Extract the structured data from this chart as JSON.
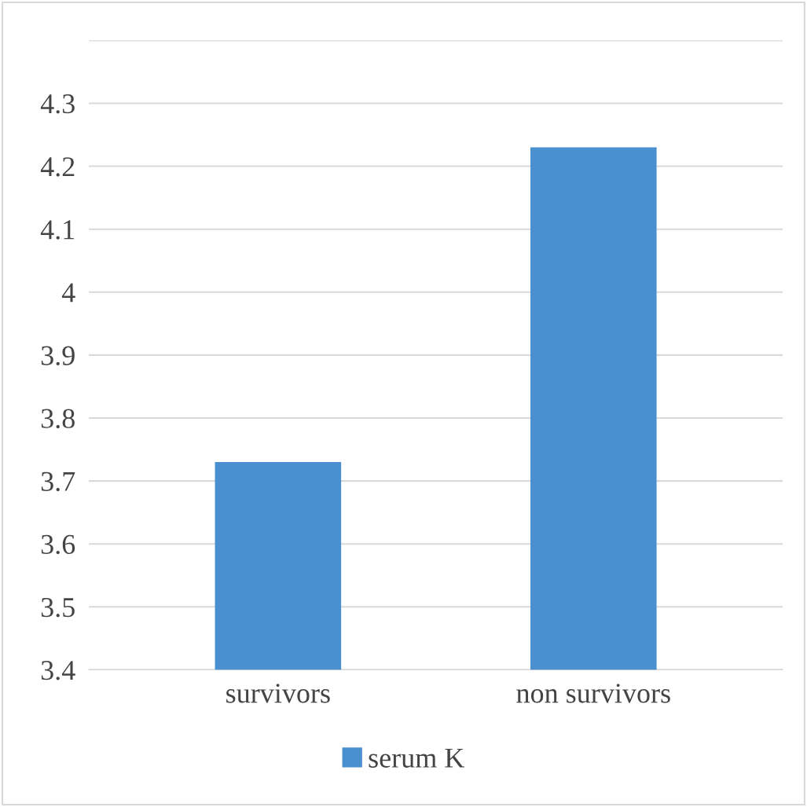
{
  "chart_data": {
    "type": "bar",
    "categories": [
      "survivors",
      "non survivors"
    ],
    "series": [
      {
        "name": "serum K",
        "color": "#4a8fd0",
        "values": [
          3.73,
          4.23
        ]
      }
    ],
    "ylim": [
      3.4,
      4.4
    ],
    "yticks": [
      3.4,
      3.5,
      3.6,
      3.7,
      3.8,
      3.9,
      4,
      4.1,
      4.2,
      4.3,
      {
        "value": 4.4,
        "label": null
      }
    ],
    "grid": "y",
    "legend": "bottom"
  }
}
